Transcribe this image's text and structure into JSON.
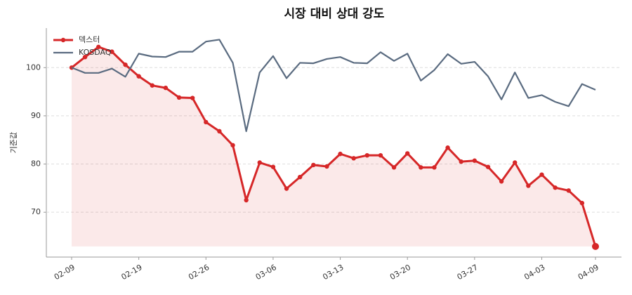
{
  "chart_data": {
    "type": "line",
    "title": "시장 대비 상대 강도",
    "y_label": "기준값",
    "categories": [
      "02-09",
      null,
      null,
      null,
      null,
      "02-19",
      null,
      null,
      null,
      null,
      "02-26",
      null,
      null,
      null,
      null,
      "03-06",
      null,
      null,
      null,
      null,
      "03-13",
      null,
      null,
      null,
      null,
      "03-20",
      null,
      null,
      null,
      null,
      "03-27",
      null,
      null,
      null,
      null,
      "04-03",
      null,
      null,
      null,
      "04-09"
    ],
    "series": [
      {
        "name": "덱스터",
        "color": "#d62728",
        "fill": true,
        "values": [
          100,
          102.2,
          104.3,
          103.3,
          100.6,
          98.2,
          96.3,
          95.8,
          93.8,
          93.7,
          88.7,
          86.8,
          83.9,
          72.5,
          80.3,
          79.4,
          74.9,
          77.3,
          79.8,
          79.5,
          82.1,
          81.2,
          81.8,
          81.8,
          79.3,
          82.2,
          79.3,
          79.3,
          83.4,
          80.5,
          80.7,
          79.4,
          76.4,
          80.3,
          75.5,
          77.8,
          75.1,
          74.5,
          71.9,
          62.9
        ]
      },
      {
        "name": "KOSDAQ",
        "color": "#5a6b80",
        "fill": false,
        "values": [
          100,
          98.9,
          98.9,
          99.8,
          98.1,
          102.9,
          102.3,
          102.2,
          103.3,
          103.3,
          105.4,
          105.8,
          101,
          86.8,
          99,
          102.4,
          97.8,
          101,
          100.9,
          101.8,
          102.2,
          101,
          100.9,
          103.2,
          101.4,
          102.9,
          97.3,
          99.5,
          102.8,
          100.8,
          101.2,
          98.2,
          93.4,
          99,
          93.7,
          94.3,
          92.9,
          92,
          96.6,
          95.4
        ]
      }
    ],
    "ylim": [
      60.7,
      108.2
    ],
    "yticks": [
      70,
      80,
      90,
      100
    ],
    "grid": true,
    "legend": "upper left"
  }
}
